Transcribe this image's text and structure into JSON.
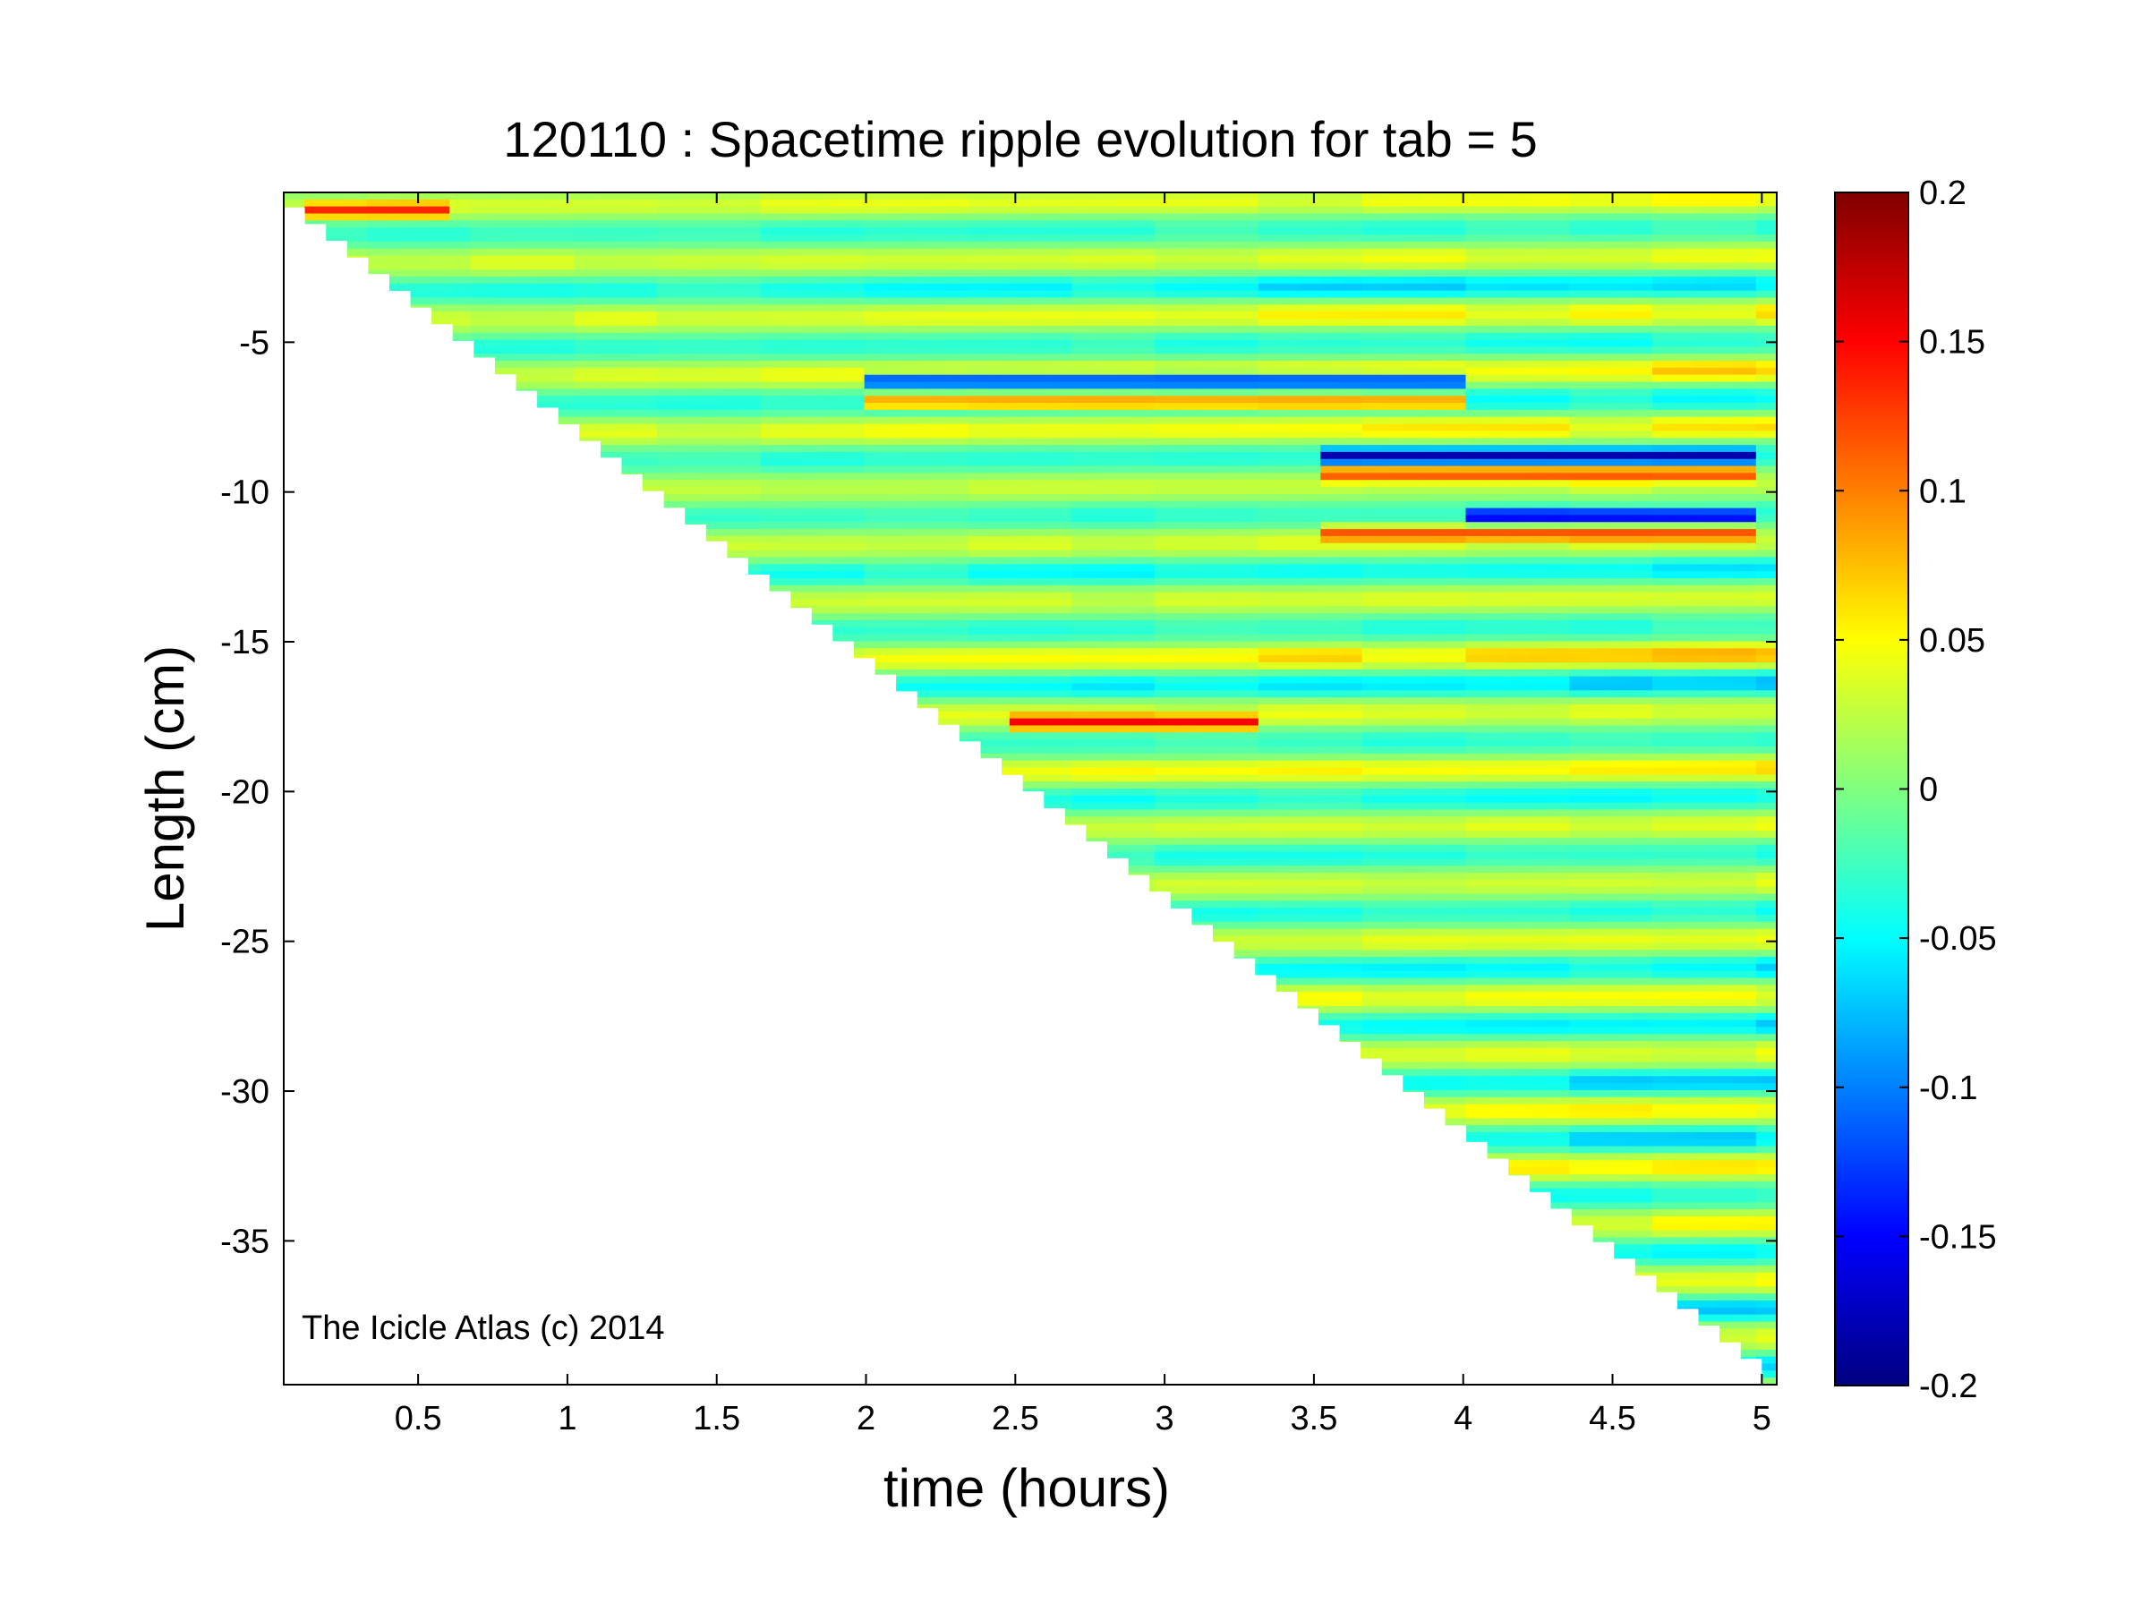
{
  "chart_data": {
    "type": "heatmap",
    "title": "120110 : Spacetime ripple evolution for tab = 5",
    "xlabel": "time (hours)",
    "ylabel": "Length (cm)",
    "xlim": [
      0.05,
      5.05
    ],
    "ylim": [
      -39.8,
      0
    ],
    "x_ticks": [
      0.5,
      1,
      1.5,
      2,
      2.5,
      3,
      3.5,
      4,
      4.5,
      5
    ],
    "x_tick_labels": [
      "0.5",
      "1",
      "1.5",
      "2",
      "2.5",
      "3",
      "3.5",
      "4",
      "4.5",
      "5"
    ],
    "y_ticks": [
      -5,
      -10,
      -15,
      -20,
      -25,
      -30,
      -35
    ],
    "y_tick_labels": [
      "-5",
      "-10",
      "-15",
      "-20",
      "-25",
      "-30",
      "-35"
    ],
    "colormap": "jet",
    "clim": [
      -0.2,
      0.2
    ],
    "colorbar_ticks": [
      0.2,
      0.15,
      0.1,
      0.05,
      0,
      -0.05,
      -0.1,
      -0.15,
      -0.2
    ],
    "colorbar_tick_labels": [
      "0.2",
      "0.15",
      "0.1",
      "0.05",
      "0",
      "-0.05",
      "-0.1",
      "-0.15",
      "-0.2"
    ],
    "colorbar_location": "right",
    "boundary_diagonal": {
      "from": [
        0.05,
        -0.5
      ],
      "to": [
        5.0,
        -39.5
      ]
    },
    "ripple_band_spacing_cm": 0.95,
    "notable_features": [
      {
        "t_start": 3.5,
        "t_end": 5.0,
        "length": -8.8,
        "value": -0.19
      },
      {
        "t_start": 3.5,
        "t_end": 5.0,
        "length": -9.4,
        "value": 0.14
      },
      {
        "t_start": 4.0,
        "t_end": 5.0,
        "length": -10.8,
        "value": -0.18
      },
      {
        "t_start": 3.5,
        "t_end": 5.0,
        "length": -11.4,
        "value": 0.13
      },
      {
        "t_start": 2.0,
        "t_end": 4.0,
        "length": -6.3,
        "value": -0.16
      },
      {
        "t_start": 2.0,
        "t_end": 4.0,
        "length": -7.0,
        "value": 0.12
      },
      {
        "t_start": 2.5,
        "t_end": 3.3,
        "length": -17.7,
        "value": 0.16
      },
      {
        "t_start": 0.1,
        "t_end": 0.6,
        "length": -0.6,
        "value": 0.14
      }
    ],
    "annotation": "The Icicle Atlas (c) 2014"
  }
}
